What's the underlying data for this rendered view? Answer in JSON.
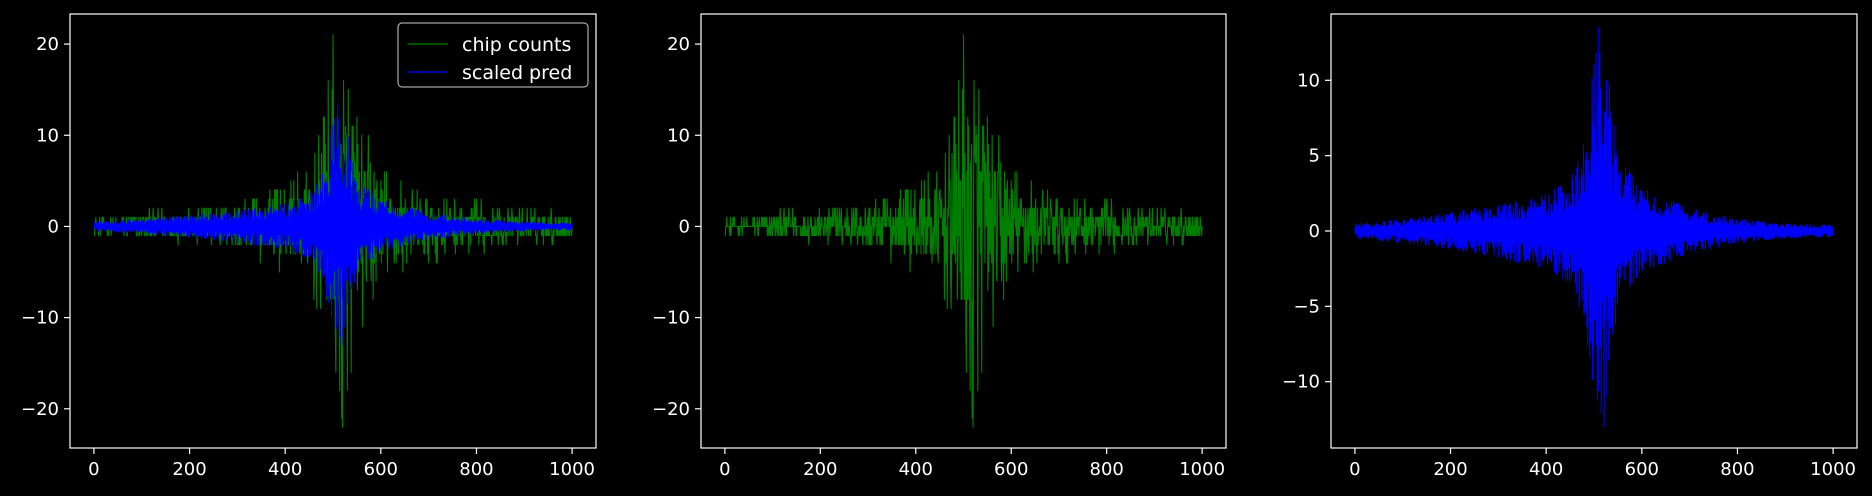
{
  "figure": {
    "background": "#000000",
    "foreground": "#ffffff"
  },
  "chart_data": [
    {
      "type": "line",
      "xlim": [
        -50,
        1050
      ],
      "ylim": [
        -24.3,
        23.3
      ],
      "xticks": [
        0,
        200,
        400,
        600,
        800,
        1000
      ],
      "yticks": [
        -20,
        -10,
        0,
        10,
        20
      ],
      "legend": {
        "placement": "top-right",
        "entries": [
          "chip counts",
          "scaled pred"
        ]
      },
      "series": [
        {
          "name": "chip counts",
          "color": "#008000",
          "source": "counts",
          "envelope": {
            "x": [
              0,
              100,
              200,
              300,
              400,
              450,
              480,
              500,
              520,
              550,
              600,
              700,
              800,
              900,
              1000
            ],
            "y": [
              1,
              1.5,
              2,
              3,
              5,
              7,
              12,
              21,
              22,
              13,
              7,
              4,
              3,
              2,
              1.5
            ]
          }
        },
        {
          "name": "scaled pred",
          "color": "#0000ff",
          "source": "pred",
          "envelope": {
            "x": [
              0,
              100,
              200,
              300,
              400,
              450,
              480,
              500,
              520,
              550,
              600,
              700,
              800,
              900,
              1000
            ],
            "y": [
              0.5,
              0.8,
              1.2,
              1.8,
              2.5,
              3.5,
              6,
              12,
              13,
              5,
              3,
              1.5,
              0.8,
              0.5,
              0.4
            ]
          }
        }
      ]
    },
    {
      "type": "line",
      "xlim": [
        -50,
        1050
      ],
      "ylim": [
        -24.3,
        23.3
      ],
      "xticks": [
        0,
        200,
        400,
        600,
        800,
        1000
      ],
      "yticks": [
        -20,
        -10,
        0,
        10,
        20
      ],
      "series": [
        {
          "color": "#008000",
          "source": "counts",
          "envelope": {
            "x": [
              0,
              100,
              200,
              300,
              400,
              450,
              480,
              500,
              520,
              550,
              600,
              700,
              800,
              900,
              1000
            ],
            "y": [
              1,
              1.5,
              2,
              3,
              5,
              7,
              12,
              21,
              22,
              13,
              7,
              4,
              3,
              2,
              1.5
            ]
          }
        }
      ]
    },
    {
      "type": "line",
      "xlim": [
        -50,
        1050
      ],
      "ylim": [
        -14.4,
        14.4
      ],
      "xticks": [
        0,
        200,
        400,
        600,
        800,
        1000
      ],
      "yticks": [
        -10,
        -5,
        0,
        5,
        10
      ],
      "series": [
        {
          "color": "#0000ff",
          "source": "pred",
          "envelope": {
            "x": [
              0,
              100,
              200,
              300,
              400,
              450,
              480,
              500,
              520,
              550,
              600,
              700,
              800,
              900,
              1000
            ],
            "y": [
              0.5,
              0.8,
              1.2,
              1.8,
              2.5,
              3.5,
              6,
              12,
              13,
              5,
              3,
              1.5,
              0.8,
              0.5,
              0.4
            ]
          }
        }
      ]
    }
  ]
}
